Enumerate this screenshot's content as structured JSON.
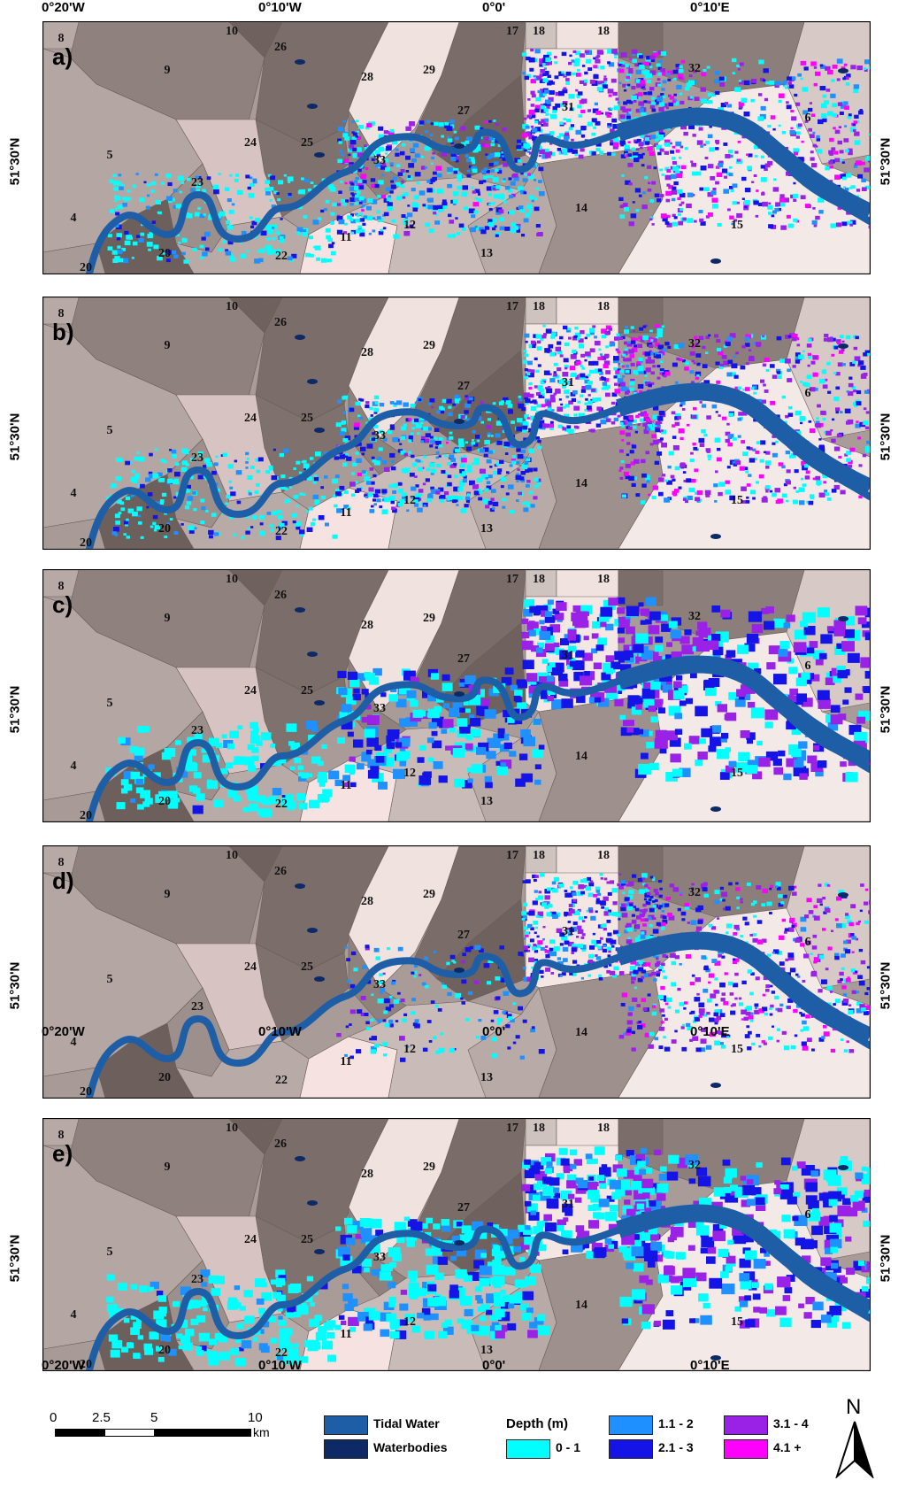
{
  "axes": {
    "top_x_labels": [
      "0°20'W",
      "0°10'W",
      "0°0'",
      "0°10'E"
    ],
    "bottom_x_labels": [
      "0°20'W",
      "0°10'W",
      "0°0'",
      "0°10'E"
    ],
    "y_label": "51°30'N"
  },
  "panels": [
    {
      "id": "a)",
      "flood_style": "fine_mixed"
    },
    {
      "id": "b)",
      "flood_style": "fine_mixed"
    },
    {
      "id": "c)",
      "flood_style": "coarse_blue"
    },
    {
      "id": "d)",
      "flood_style": "east_only"
    },
    {
      "id": "e)",
      "flood_style": "coarse_cyan"
    }
  ],
  "districts": [
    "8",
    "9",
    "10",
    "26",
    "28",
    "29",
    "17",
    "18",
    "18",
    "32",
    "6",
    "27",
    "31",
    "5",
    "25",
    "33",
    "24",
    "23",
    "4",
    "20",
    "20",
    "22",
    "11",
    "12",
    "13",
    "14",
    "15"
  ],
  "legend": {
    "scale_ticks": [
      "0",
      "2.5",
      "5",
      "10"
    ],
    "scale_unit": "km",
    "tidal_water": "Tidal Water",
    "waterbodies": "Waterbodies",
    "depth_title": "Depth (m)",
    "depth_classes": [
      "0 - 1",
      "1.1 - 2",
      "2.1 - 3",
      "3.1 - 4",
      "4.1 +"
    ],
    "north": "N"
  },
  "colors": {
    "tidal_water": "#1e5ea6",
    "waterbodies": "#0d2a66",
    "depth_0_1": "#00ffff",
    "depth_1_2": "#1e90ff",
    "depth_2_3": "#1414e6",
    "depth_3_4": "#9a22e6",
    "depth_4_plus": "#ff00ff"
  }
}
